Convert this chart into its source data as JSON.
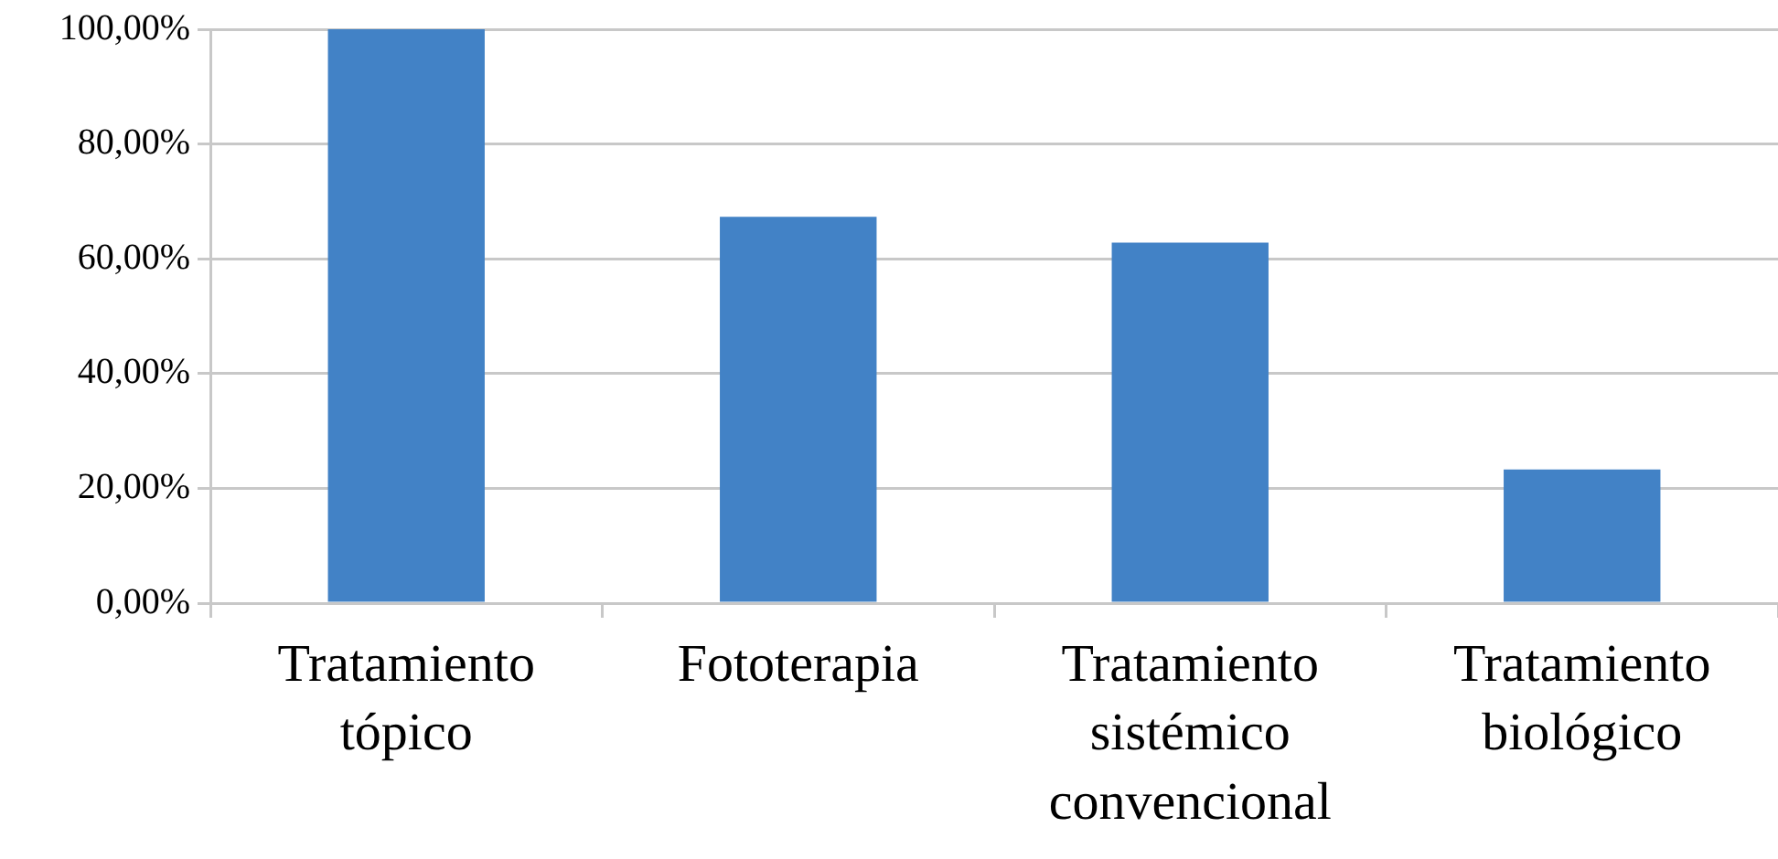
{
  "chart_data": {
    "type": "bar",
    "categories": [
      "Tratamiento tópico",
      "Fototerapia",
      "Tratamiento sistémico convencional",
      "Tratamiento biológico"
    ],
    "values": [
      100,
      67.3,
      62.8,
      23.3
    ],
    "color": "#4282c6",
    "ylim": [
      0,
      100
    ],
    "yticks": [
      {
        "value": 0,
        "label": "0,00%"
      },
      {
        "value": 20,
        "label": "20,00%"
      },
      {
        "value": 40,
        "label": "40,00%"
      },
      {
        "value": 60,
        "label": "60,00%"
      },
      {
        "value": 80,
        "label": "80,00%"
      },
      {
        "value": 100,
        "label": "100,00%"
      }
    ],
    "grid": "y"
  }
}
